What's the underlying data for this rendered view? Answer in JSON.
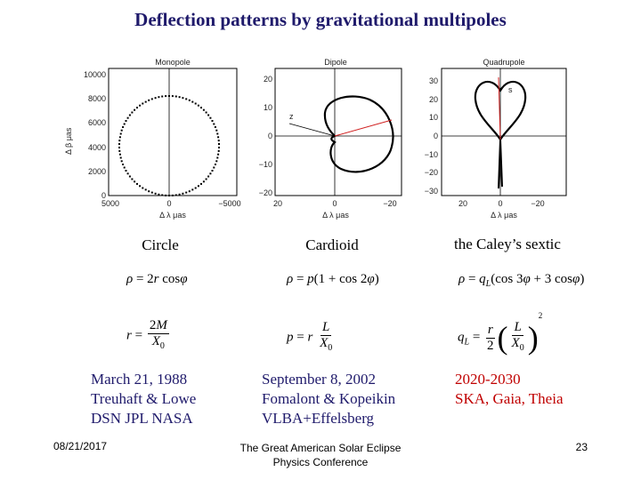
{
  "title": "Deflection patterns by gravitational multipoles",
  "plots": {
    "monopole": {
      "title": "Monopole",
      "yticks": [
        "10000",
        "8000",
        "6000",
        "4000",
        "2000",
        "0"
      ],
      "xticks": [
        "5000",
        "0",
        "−5000"
      ],
      "ylabel": "Δ β   μas",
      "xlabel": "Δ λ   μas"
    },
    "dipole": {
      "title": "Dipole",
      "yticks": [
        "20",
        "10",
        "0",
        "−10",
        "−20"
      ],
      "xticks": [
        "20",
        "0",
        "−20"
      ],
      "xlabel": "Δ λ   μas",
      "annotation": "z"
    },
    "quadrupole": {
      "title": "Quadrupole",
      "yticks": [
        "30",
        "20",
        "10",
        "0",
        "−10",
        "−20",
        "−30"
      ],
      "xticks": [
        "20",
        "0",
        "−20"
      ],
      "xlabel": "Δ λ   μas",
      "annotation": "s"
    }
  },
  "columns": [
    {
      "label": "Circle",
      "info": [
        "March 21, 1988",
        "Treuhaft & Lowe",
        "DSN JPL NASA"
      ],
      "info_color": "#1f1a6b"
    },
    {
      "label": "Cardioid",
      "info": [
        "September 8, 2002",
        "Fomalont & Kopeikin",
        "VLBA+Effelsberg"
      ],
      "info_color": "#1f1a6b"
    },
    {
      "label": "the Caley’s sextic",
      "info": [
        "2020-2030",
        "SKA, Gaia, Theia"
      ],
      "info_color": "#c00000"
    }
  ],
  "footer": {
    "date": "08/21/2017",
    "conference_line1": "The Great American Solar Eclipse",
    "conference_line2": "Physics Conference",
    "page": "23"
  }
}
